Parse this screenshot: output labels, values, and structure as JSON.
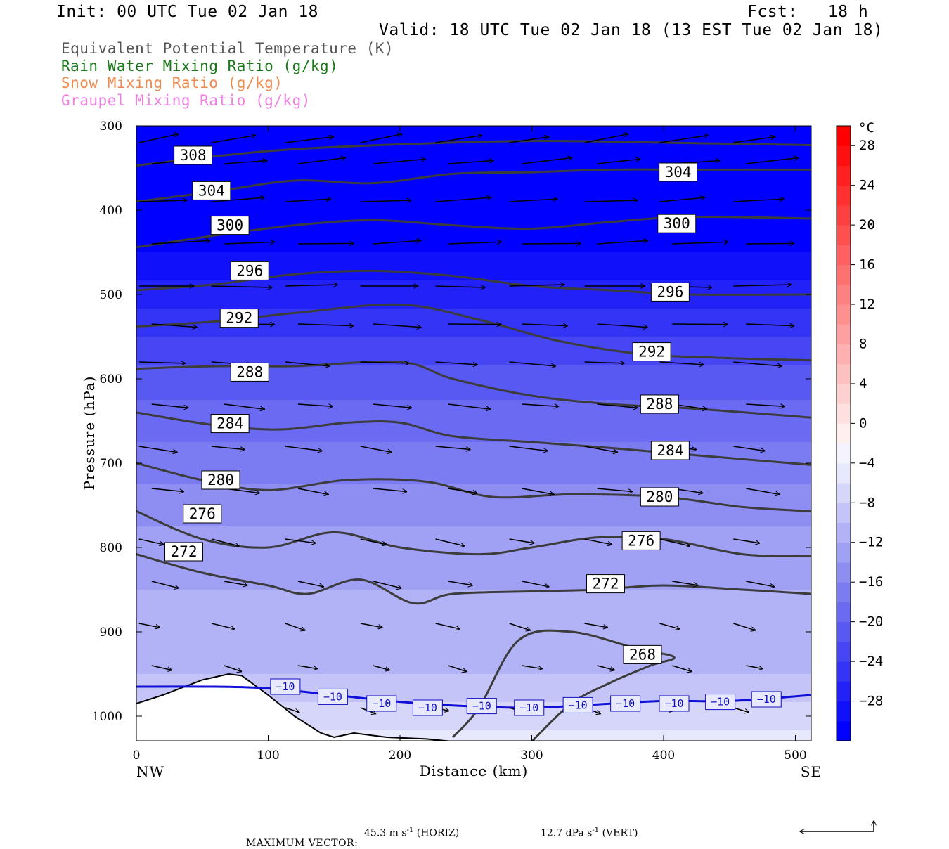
{
  "header": {
    "init": "Init: 00 UTC Tue 02 Jan 18",
    "fcst": "Fcst:   18 h",
    "valid": "Valid: 18 UTC Tue 02 Jan 18 (13 EST Tue 02 Jan 18)"
  },
  "legend": [
    {
      "label": "Equivalent Potential Temperature (K)",
      "color": "#555555"
    },
    {
      "label": "Rain Water Mixing Ratio (g/kg)",
      "color": "#1a7a1a"
    },
    {
      "label": "Snow Mixing Ratio (g/kg)",
      "color": "#ef8a4e"
    },
    {
      "label": "Graupel Mixing Ratio (g/kg)",
      "color": "#ee7ee0"
    }
  ],
  "chart_data": {
    "type": "heatmap",
    "description_fields": "cross-section: shaded temperature, theta-e contours, wind vectors",
    "xlabel": "Distance (km)",
    "ylabel": "Pressure (hPa)",
    "xlim": [
      0,
      512
    ],
    "ylim": [
      1030,
      300
    ],
    "x_ticks": [
      "0",
      "100",
      "200",
      "300",
      "400",
      "500"
    ],
    "y_ticks": [
      "300",
      "400",
      "500",
      "600",
      "700",
      "800",
      "900",
      "1000"
    ],
    "x_ends": {
      "left": "NW",
      "right": "SE"
    },
    "theta_e_contours": [
      {
        "value": 308,
        "label": "308",
        "x": [
          0,
          100,
          200,
          300,
          400,
          512
        ],
        "y": [
          347,
          330,
          322,
          318,
          320,
          323
        ],
        "labels_at": [
          [
            43,
            335
          ]
        ]
      },
      {
        "value": 304,
        "label": "304",
        "x": [
          0,
          60,
          120,
          180,
          240,
          300,
          360,
          420,
          512
        ],
        "y": [
          390,
          378,
          365,
          368,
          357,
          355,
          352,
          352,
          352
        ],
        "labels_at": [
          [
            57,
            377
          ],
          [
            411,
            355
          ]
        ]
      },
      {
        "value": 300,
        "label": "300",
        "x": [
          0,
          60,
          120,
          180,
          240,
          300,
          360,
          420,
          512
        ],
        "y": [
          444,
          430,
          418,
          412,
          418,
          422,
          414,
          408,
          410
        ],
        "labels_at": [
          [
            71,
            418
          ],
          [
            410,
            416
          ]
        ]
      },
      {
        "value": 296,
        "label": "296",
        "x": [
          0,
          60,
          120,
          180,
          240,
          300,
          360,
          420,
          512
        ],
        "y": [
          495,
          488,
          476,
          472,
          478,
          490,
          495,
          500,
          500
        ],
        "labels_at": [
          [
            86,
            472
          ],
          [
            405,
            497
          ]
        ]
      },
      {
        "value": 292,
        "label": "292",
        "x": [
          0,
          60,
          120,
          200,
          260,
          320,
          380,
          440,
          512
        ],
        "y": [
          538,
          532,
          522,
          512,
          530,
          555,
          570,
          575,
          578
        ],
        "labels_at": [
          [
            78,
            528
          ],
          [
            391,
            568
          ]
        ]
      },
      {
        "value": 288,
        "label": "288",
        "x": [
          0,
          60,
          120,
          200,
          240,
          300,
          360,
          420,
          512
        ],
        "y": [
          588,
          585,
          585,
          580,
          600,
          620,
          630,
          635,
          646
        ],
        "labels_at": [
          [
            86,
            592
          ],
          [
            397,
            630
          ]
        ]
      },
      {
        "value": 284,
        "label": "284",
        "x": [
          0,
          60,
          110,
          160,
          200,
          240,
          300,
          360,
          420,
          512
        ],
        "y": [
          640,
          655,
          660,
          652,
          652,
          668,
          675,
          682,
          690,
          702
        ],
        "labels_at": [
          [
            71,
            653
          ],
          [
            405,
            685
          ]
        ]
      },
      {
        "value": 280,
        "label": "280",
        "x": [
          0,
          50,
          100,
          160,
          220,
          270,
          330,
          400,
          460,
          512
        ],
        "y": [
          700,
          720,
          732,
          720,
          722,
          740,
          737,
          740,
          752,
          757
        ],
        "labels_at": [
          [
            64,
            720
          ],
          [
            397,
            740
          ]
        ]
      },
      {
        "value": 276,
        "label": "276",
        "x": [
          0,
          50,
          100,
          150,
          200,
          260,
          300,
          350,
          400,
          460,
          512
        ],
        "y": [
          757,
          790,
          800,
          782,
          800,
          808,
          800,
          788,
          790,
          808,
          810
        ],
        "labels_at": [
          [
            50,
            760
          ],
          [
            383,
            792
          ]
        ]
      },
      {
        "value": 272,
        "label": "272",
        "x": [
          0,
          50,
          100,
          130,
          170,
          210,
          240,
          300,
          350,
          400,
          460,
          512
        ],
        "y": [
          808,
          830,
          845,
          855,
          838,
          866,
          855,
          852,
          850,
          845,
          850,
          855
        ],
        "labels_at": [
          [
            36,
            805
          ],
          [
            356,
            843
          ]
        ]
      },
      {
        "value": 268,
        "label": "268",
        "x": [
          240,
          260,
          290,
          330,
          380,
          408,
          390,
          360,
          330,
          300
        ],
        "y": [
          1025,
          990,
          910,
          900,
          920,
          930,
          940,
          960,
          985,
          1030
        ],
        "labels_at": [
          [
            384,
            927
          ]
        ]
      }
    ],
    "temperature_contours": [
      {
        "value": -10,
        "label": "−10",
        "x": [
          0,
          60,
          100,
          150,
          200,
          250,
          300,
          350,
          400,
          450,
          512
        ],
        "y": [
          965,
          965,
          967,
          975,
          983,
          988,
          990,
          986,
          982,
          982,
          975
        ],
        "labels_at": [
          [
            113,
            965
          ],
          [
            149,
            977
          ],
          [
            186,
            985
          ],
          [
            221,
            990
          ],
          [
            262,
            988
          ],
          [
            298,
            990
          ],
          [
            335,
            987
          ],
          [
            371,
            985
          ],
          [
            408,
            985
          ],
          [
            443,
            983
          ],
          [
            478,
            980
          ]
        ]
      }
    ],
    "temperature_colorbar": {
      "unit": "°C",
      "labels": [
        "28",
        "24",
        "20",
        "16",
        "12",
        "8",
        "4",
        "0",
        "−4",
        "−8",
        "−12",
        "−16",
        "−20",
        "−24",
        "−28"
      ],
      "color_bands": [
        "#0000ff",
        "#1010fb",
        "#2222f8",
        "#3434f6",
        "#4646f4",
        "#5858f2",
        "#6a6af2",
        "#7c7cf2",
        "#8e8ef2",
        "#a0a0f4",
        "#b2b2f6",
        "#c4c4f8",
        "#d6d6fa",
        "#e8e8fc",
        "#f4f4ff",
        "#fff0f0",
        "#ffe0e0",
        "#ffd0d0",
        "#ffc0c0",
        "#ffb0b0",
        "#ffa0a0",
        "#ff9090",
        "#ff8080",
        "#ff7070",
        "#ff6060",
        "#ff5050",
        "#ff4040",
        "#ff3030",
        "#ff2020",
        "#ff1010",
        "#ff0000"
      ]
    },
    "temperature_field": {
      "levels_hPa": [
        300,
        400,
        450,
        500,
        550,
        600,
        650,
        700,
        750,
        800,
        850,
        900,
        950,
        1000,
        1030
      ],
      "temperature_C": [
        -44,
        -34,
        -30,
        -27,
        -24,
        -21,
        -19,
        -17,
        -15,
        -13,
        -12,
        -11,
        -10,
        -7,
        -5
      ]
    },
    "terrain": {
      "x": [
        0,
        20,
        50,
        70,
        80,
        100,
        120,
        140,
        150,
        165,
        190,
        220,
        240,
        260,
        300,
        400,
        512
      ],
      "p": [
        985,
        975,
        957,
        950,
        952,
        975,
        1000,
        1020,
        1025,
        1020,
        1025,
        1027,
        1030,
        1030,
        1030,
        1030,
        1030
      ]
    },
    "wind_vectors": {
      "levels_hPa": [
        320,
        345,
        390,
        440,
        490,
        535,
        580,
        630,
        680,
        730,
        790,
        840,
        890,
        940,
        990
      ],
      "x_km": [
        2,
        57,
        113,
        170,
        227,
        283,
        340,
        397,
        453
      ],
      "u": [
        48,
        52,
        55,
        58,
        60,
        55,
        48,
        42,
        38,
        35,
        30,
        28,
        24,
        20,
        16
      ],
      "v": [
        -8,
        -5,
        -3,
        -2,
        0,
        2,
        3,
        4,
        5,
        5,
        6,
        6,
        6,
        5,
        5
      ]
    }
  },
  "footer": {
    "max_vector_label": "MAXIMUM VECTOR:",
    "horiz_value": "45.3 m s",
    "horiz_exp": "-1",
    "horiz_tag": "(HORIZ)",
    "vert_value": "12.7 dPa s",
    "vert_exp": "-1",
    "vert_tag": "(VERT)"
  }
}
